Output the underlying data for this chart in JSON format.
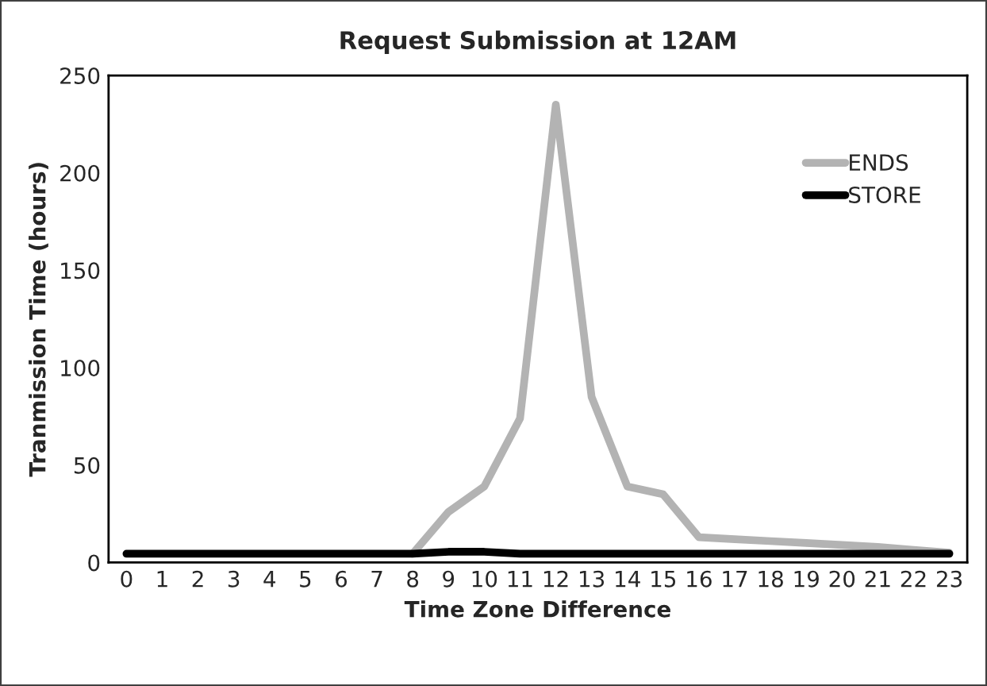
{
  "chart_data": {
    "type": "line",
    "title": "Request Submission at 12AM",
    "xlabel": "Time Zone Difference",
    "ylabel": "Tranmission Time (hours)",
    "categories": [
      "0",
      "1",
      "2",
      "3",
      "4",
      "5",
      "6",
      "7",
      "8",
      "9",
      "10",
      "11",
      "12",
      "13",
      "14",
      "15",
      "16",
      "17",
      "18",
      "19",
      "20",
      "21",
      "22",
      "23"
    ],
    "series": [
      {
        "name": "ENDS",
        "color": "#b3b3b3",
        "values": [
          null,
          null,
          null,
          null,
          null,
          null,
          null,
          null,
          4.5,
          26,
          39,
          74,
          235,
          85,
          39,
          35,
          13,
          12,
          11,
          10,
          9,
          8,
          6.5,
          5
        ]
      },
      {
        "name": "STORE",
        "color": "#000000",
        "values": [
          4.5,
          4.5,
          4.5,
          4.5,
          4.5,
          4.5,
          4.5,
          4.5,
          4.5,
          5.5,
          5.5,
          4.5,
          4.5,
          4.5,
          4.5,
          4.5,
          4.5,
          4.5,
          4.5,
          4.5,
          4.5,
          4.5,
          4.5,
          4.5
        ]
      }
    ],
    "ylim": [
      0,
      250
    ],
    "yticks": [
      0,
      50,
      100,
      150,
      200,
      250
    ],
    "grid": false,
    "legend": "top right",
    "marker": "none",
    "line_style": "solid"
  }
}
